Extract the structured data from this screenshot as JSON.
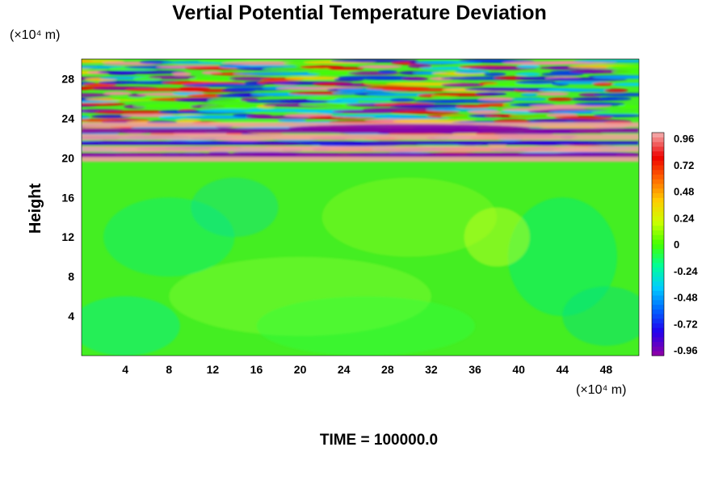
{
  "chart_data": {
    "type": "heatmap",
    "title": "Vertial Potential Temperature Deviation",
    "ylabel": "Height",
    "y_unit": "(×10⁴ m)",
    "x_unit": "(×10⁴ m)",
    "xlim": [
      0,
      51
    ],
    "ylim": [
      0,
      30
    ],
    "x_ticks": [
      4,
      8,
      12,
      16,
      20,
      24,
      28,
      32,
      36,
      40,
      44,
      48
    ],
    "y_ticks": [
      4,
      8,
      12,
      16,
      20,
      24,
      28
    ],
    "grid": false,
    "colorbar": {
      "position": "right",
      "range": [
        -0.96,
        0.96
      ],
      "tick_values": [
        0.96,
        0.72,
        0.48,
        0.24,
        0,
        -0.24,
        -0.48,
        -0.72,
        -0.96
      ],
      "tick_labels": [
        "0.96",
        "0.72",
        "0.48",
        "0.24",
        "0",
        "-0.24",
        "-0.48",
        "-0.72",
        "-0.96"
      ],
      "colors": [
        "#8800aa",
        "#2200ee",
        "#0066ff",
        "#00ccff",
        "#00ff99",
        "#44ff00",
        "#ccff00",
        "#ffcc00",
        "#ff6600",
        "#ee0000",
        "#f4a0a0"
      ]
    },
    "field": {
      "description_regions": [
        {
          "y_range": [
            0,
            19.5
          ],
          "value": 0.0
        },
        {
          "y_range": [
            19.5,
            30
          ],
          "value": "oscillating"
        }
      ]
    },
    "annotation": "TIME = 100000.0"
  }
}
